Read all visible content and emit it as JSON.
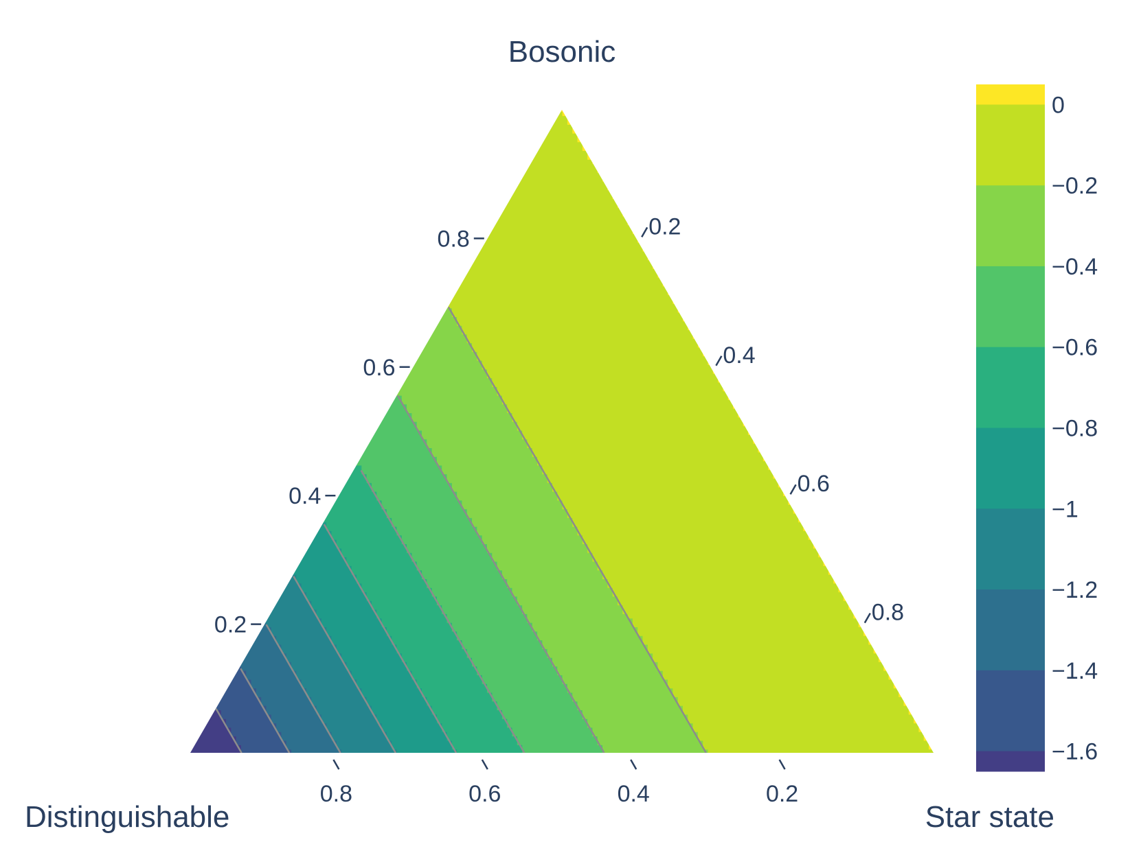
{
  "chart_data": {
    "type": "ternary-contour",
    "axes": {
      "top": {
        "title": "Bosonic",
        "ticks": [
          0.2,
          0.4,
          0.6,
          0.8
        ],
        "tick_labels": [
          "0.2",
          "0.4",
          "0.6",
          "0.8"
        ]
      },
      "left": {
        "title": "Distinguishable",
        "ticks": [
          0.2,
          0.4,
          0.6,
          0.8
        ],
        "tick_labels": [
          "0.8",
          "0.6",
          "0.4",
          "0.2"
        ]
      },
      "right": {
        "title": "Star state",
        "ticks": [
          0.2,
          0.4,
          0.6,
          0.8
        ],
        "tick_labels": [
          "0.2",
          "0.4",
          "0.6",
          "0.8"
        ]
      }
    },
    "contour_levels": [
      -1.6,
      -1.4,
      -1.2,
      -1.0,
      -0.8,
      -0.6,
      -0.4,
      -0.2,
      0.0
    ],
    "colorbar": {
      "range": [
        -1.65,
        0.05
      ],
      "ticks": [
        0,
        -0.2,
        -0.4,
        -0.6,
        -0.8,
        -1,
        -1.2,
        -1.4,
        -1.6
      ],
      "tick_labels": [
        "0",
        "−0.2",
        "−0.4",
        "−0.6",
        "−0.8",
        "−1",
        "−1.2",
        "−1.4",
        "−1.6"
      ],
      "colors": [
        "#fde725",
        "#c2df23",
        "#86d549",
        "#52c569",
        "#2ab07f",
        "#1e9b8a",
        "#25858e",
        "#2d708e",
        "#38588c",
        "#433e85",
        "#482173"
      ]
    },
    "contour_line_color": "#8c8c8c"
  }
}
